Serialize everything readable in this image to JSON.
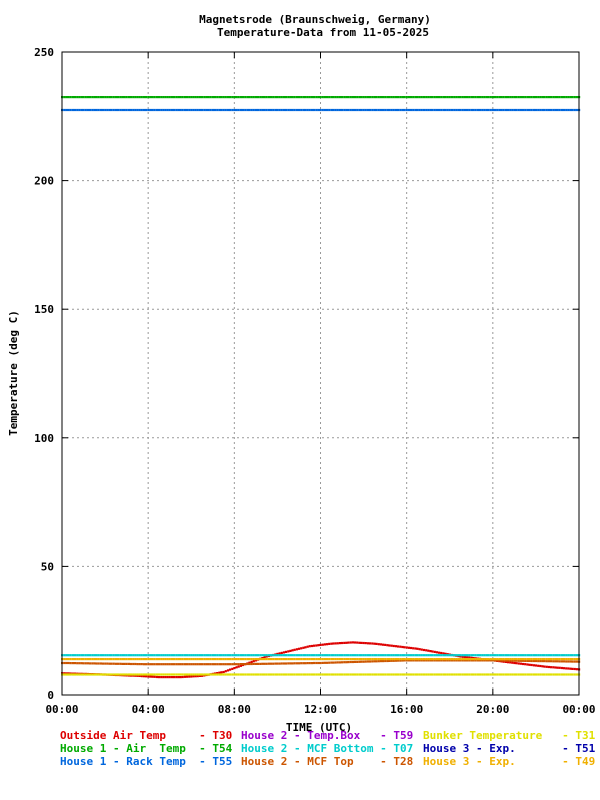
{
  "chart_data": {
    "type": "scatter",
    "title": "Magnetsrode (Braunschweig, Germany)",
    "subtitle": "Temperature-Data from 11-05-2025",
    "xlabel": "TIME (UTC)",
    "ylabel": "Temperature (deg C)",
    "xlim": [
      0,
      24
    ],
    "ylim": [
      0,
      250
    ],
    "x_ticks": [
      "00:00",
      "04:00",
      "08:00",
      "12:00",
      "16:00",
      "20:00",
      "00:00"
    ],
    "y_ticks": [
      "0",
      "50",
      "100",
      "150",
      "200",
      "250"
    ],
    "grid": true,
    "series": [
      {
        "name": "Outside Air Temp",
        "code": "T30",
        "color": "#dd0000",
        "x": [
          0,
          2,
          3.5,
          4.5,
          5.5,
          6.5,
          7.5,
          8.5,
          9.5,
          10.5,
          11.5,
          12.5,
          13.5,
          14.5,
          15.5,
          16.5,
          17.5,
          18.5,
          19.5,
          20.5,
          21.5,
          22.5,
          24
        ],
        "values": [
          8.5,
          8,
          7.5,
          7,
          7,
          7.5,
          9,
          12,
          15,
          17,
          19,
          20,
          20.5,
          20,
          19,
          18,
          16.5,
          15,
          14,
          13,
          12,
          11,
          10
        ]
      },
      {
        "name": "House 2 - Temp.Box",
        "code": "T59",
        "color": "#9900cc",
        "x": [],
        "values": []
      },
      {
        "name": "Bunker Temperature",
        "code": "T31",
        "color": "#e0e000",
        "x": [
          0,
          6,
          12,
          18,
          24
        ],
        "values": [
          8,
          8,
          8,
          8,
          8
        ]
      },
      {
        "name": "House 1 - Air  Temp",
        "code": "T54",
        "color": "#00aa00",
        "x": [
          0,
          6,
          12,
          18,
          24
        ],
        "values": [
          232.5,
          232.5,
          232.5,
          232.5,
          232.5
        ]
      },
      {
        "name": "House 2 - MCF Bottom",
        "code": "T07",
        "color": "#00cccc",
        "x": [
          0,
          6,
          12,
          18,
          24
        ],
        "values": [
          15.5,
          15.5,
          15.5,
          15.5,
          15.5
        ]
      },
      {
        "name": "House 3 - Exp.",
        "code": "T51",
        "color": "#0000aa",
        "x": [],
        "values": []
      },
      {
        "name": "House 1 - Rack Temp",
        "code": "T55",
        "color": "#0066dd",
        "x": [
          0,
          6,
          12,
          18,
          24
        ],
        "values": [
          227.5,
          227.5,
          227.5,
          227.5,
          227.5
        ]
      },
      {
        "name": "House 2 - MCF Top",
        "code": "T28",
        "color": "#cc5500",
        "x": [
          0,
          4,
          8,
          12,
          16,
          20,
          24
        ],
        "values": [
          12.5,
          12,
          12,
          12.5,
          13.5,
          13.5,
          13
        ]
      },
      {
        "name": "House 3 - Exp.",
        "code": "T49",
        "color": "#f0b000",
        "x": [
          0,
          6,
          12,
          18,
          24
        ],
        "values": [
          14,
          14,
          14,
          14,
          14
        ]
      }
    ],
    "legend": {
      "placement": "bottom",
      "rows": [
        [
          {
            "label": "Outside Air Temp    ",
            "code": "- T30",
            "color": "#dd0000"
          },
          {
            "label": "House 2 - Temp.Box  ",
            "code": "- T59",
            "color": "#9900cc"
          },
          {
            "label": "Bunker Temperature  ",
            "code": "- T31",
            "color": "#e0e000"
          }
        ],
        [
          {
            "label": "House 1 - Air  Temp ",
            "code": "- T54",
            "color": "#00aa00"
          },
          {
            "label": "House 2 - MCF Bottom",
            "code": "- T07",
            "color": "#00cccc"
          },
          {
            "label": "House 3 - Exp.      ",
            "code": "- T51",
            "color": "#0000aa"
          }
        ],
        [
          {
            "label": "House 1 - Rack Temp ",
            "code": "- T55",
            "color": "#0066dd"
          },
          {
            "label": "House 2 - MCF Top   ",
            "code": "- T28",
            "color": "#cc5500"
          },
          {
            "label": "House 3 - Exp.      ",
            "code": "- T49",
            "color": "#f0b000"
          }
        ]
      ]
    }
  }
}
